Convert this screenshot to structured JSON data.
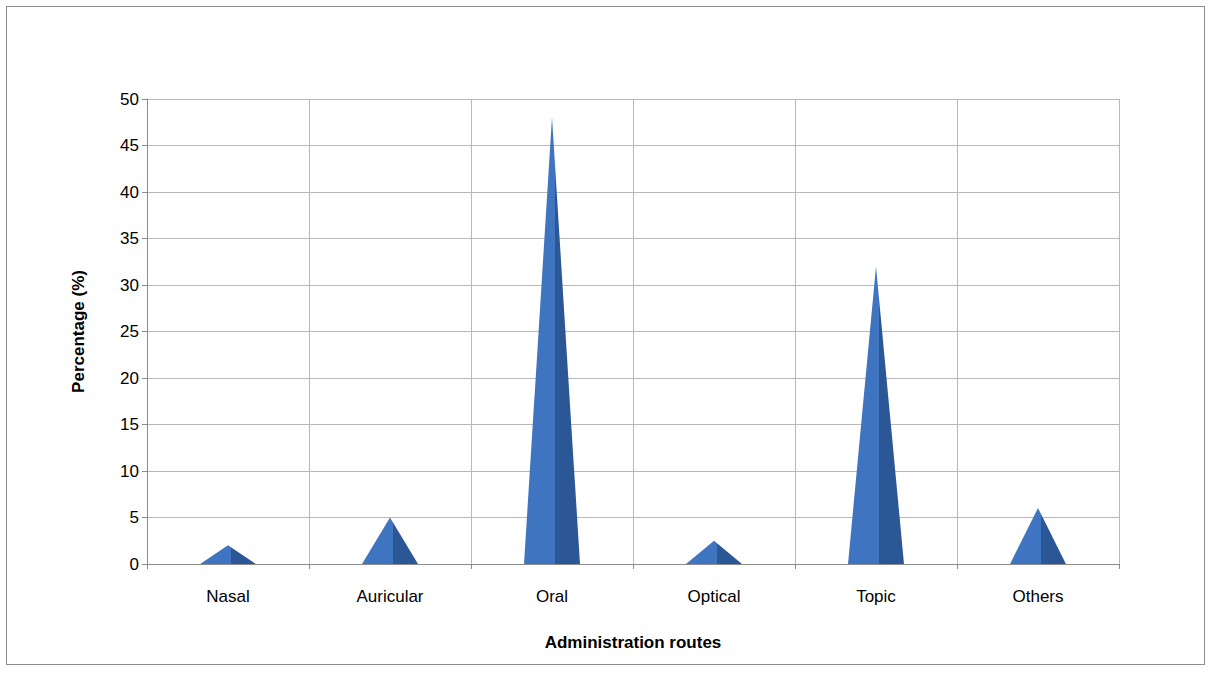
{
  "chart_data": {
    "type": "bar",
    "x_label": "Administration routes",
    "y_label": "Percentage (%)",
    "categories": [
      "Nasal",
      "Auricular",
      "Oral",
      "Optical",
      "Topic",
      "Others"
    ],
    "values": [
      2,
      5,
      48,
      2.5,
      32,
      6
    ],
    "color": "#3f75c0",
    "marker": "triangle",
    "ylim": [
      0,
      50
    ],
    "yticks": [
      0,
      5,
      10,
      15,
      20,
      25,
      30,
      35,
      40,
      45,
      50
    ],
    "grid": true
  }
}
